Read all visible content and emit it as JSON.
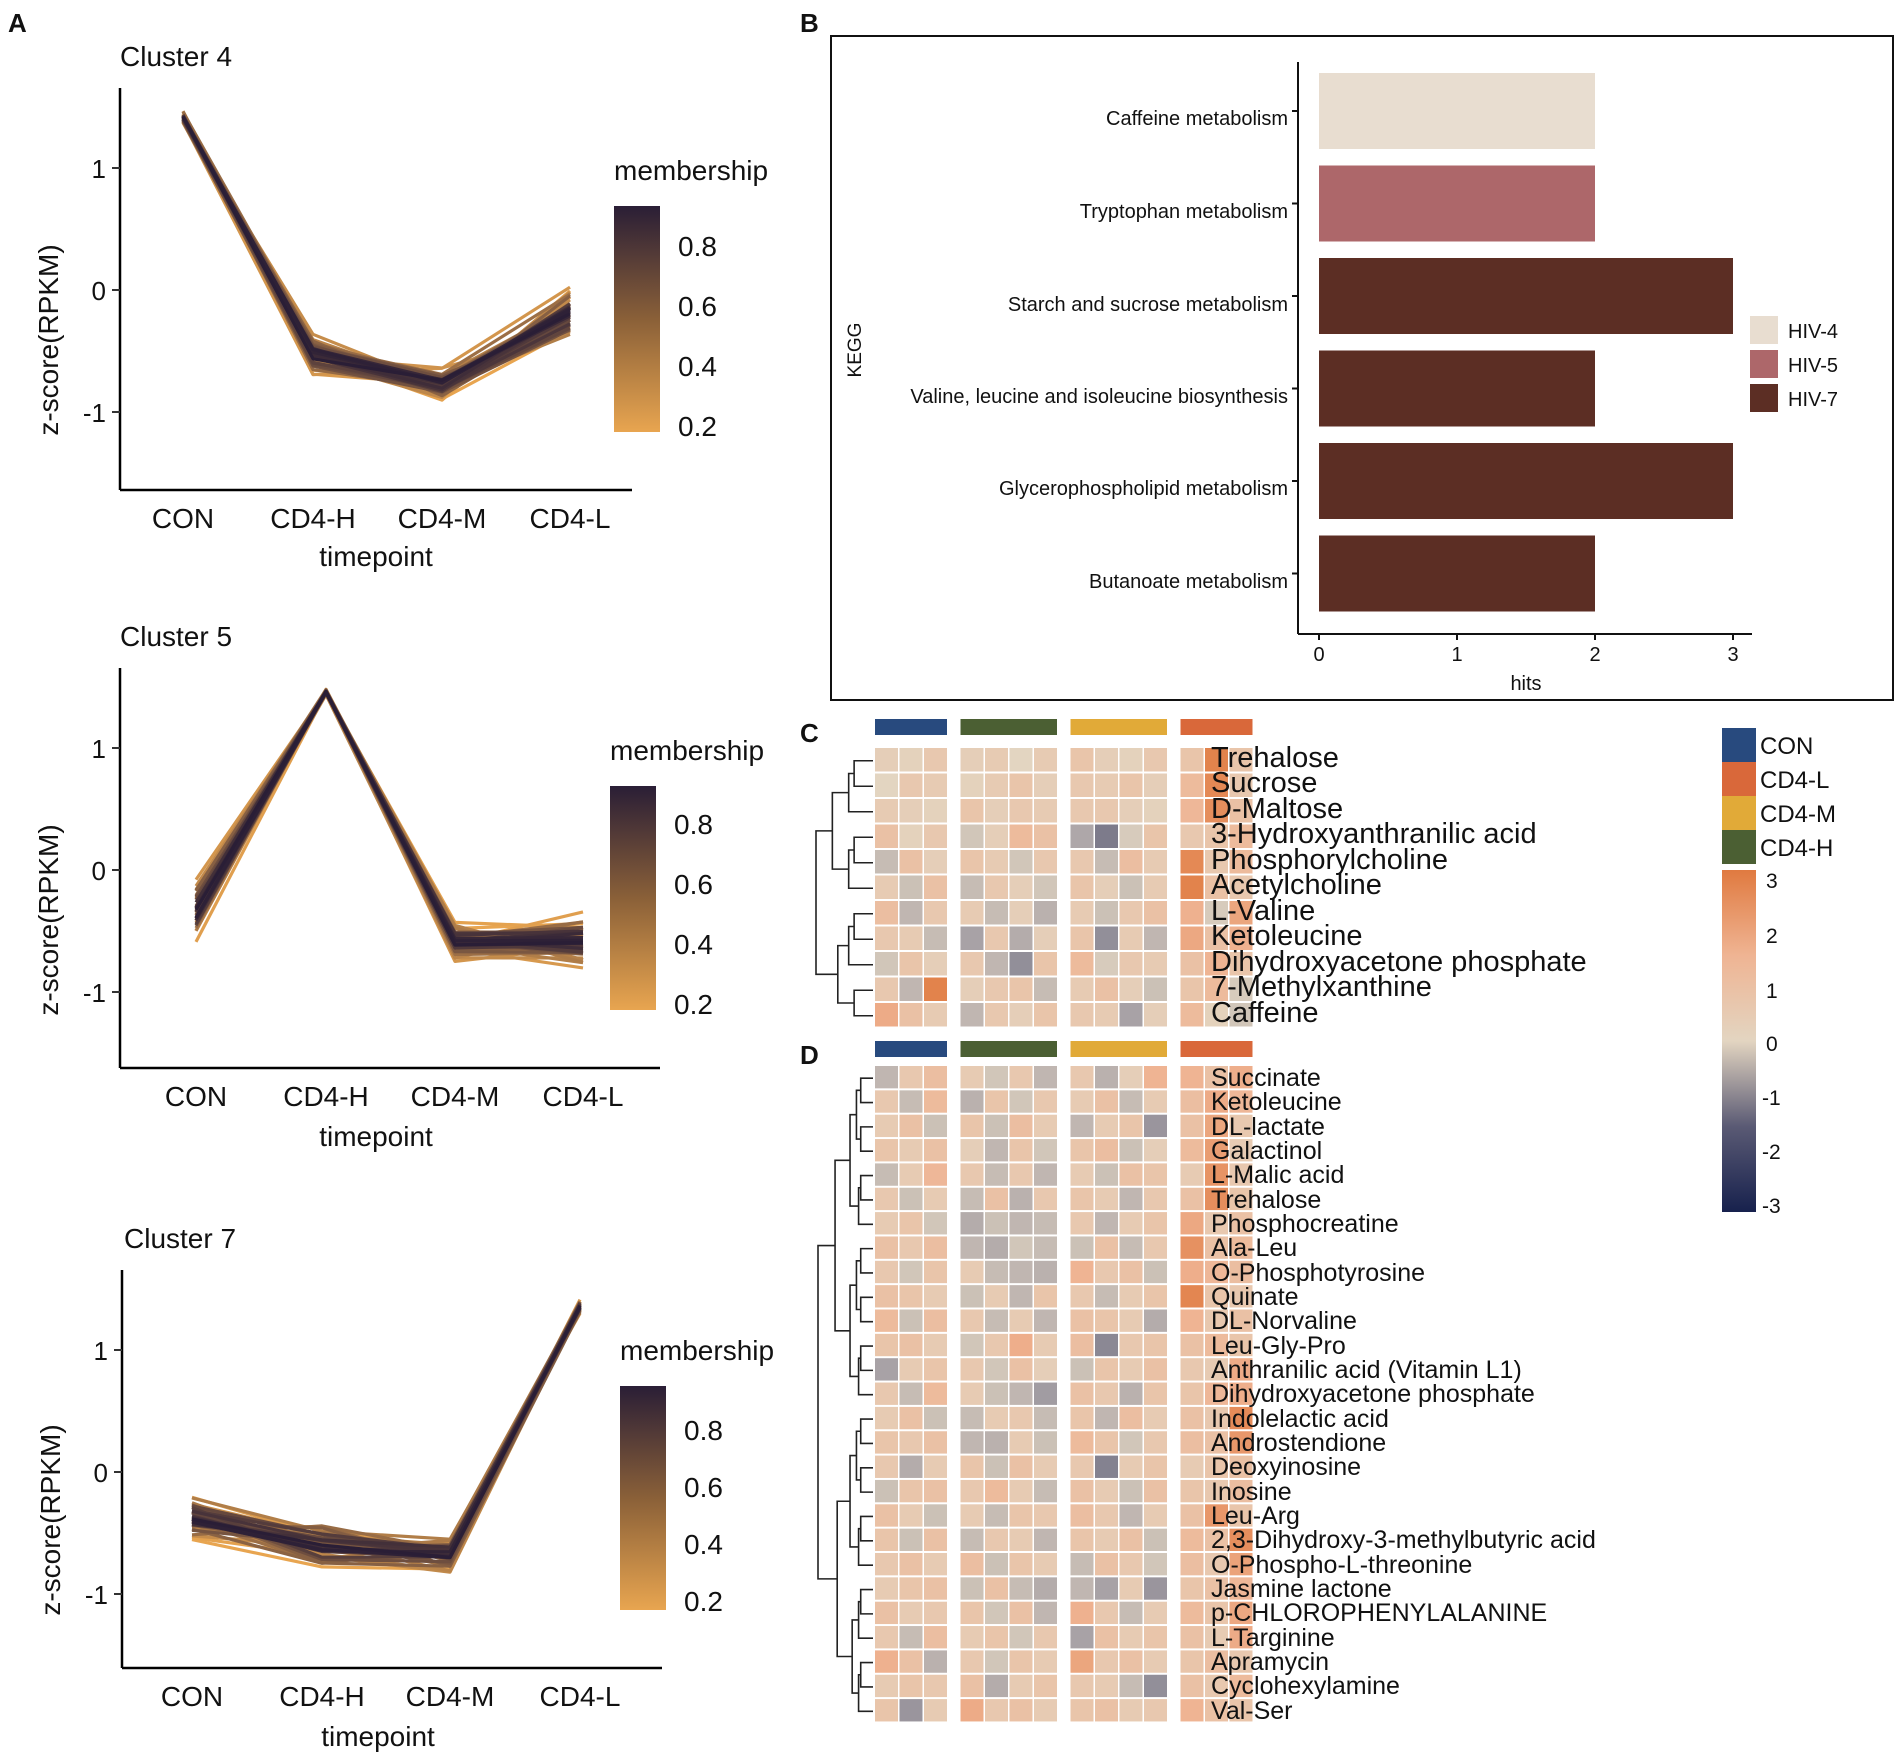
{
  "panel_labels": [
    "A",
    "B",
    "C",
    "D"
  ],
  "chart_data": [
    {
      "panel": "A",
      "type": "line",
      "title": "Cluster 4",
      "xlabel": "timepoint",
      "ylabel": "z-score(RPKM)",
      "categories": [
        "CON",
        "CD4-H",
        "CD4-M",
        "CD4-L"
      ],
      "ylim": [
        -1.6,
        1.6
      ],
      "yticks": [
        "1",
        "0",
        "-1"
      ],
      "centroid": [
        1.42,
        -0.53,
        -0.77,
        -0.2
      ],
      "spread": [
        0.07,
        0.2,
        0.16,
        0.26
      ],
      "line_count": 46,
      "legend": {
        "title": "membership",
        "ticks": [
          "0.8",
          "0.6",
          "0.4",
          "0.2"
        ],
        "range": [
          0.15,
          0.95
        ],
        "colors": [
          "#e8a550",
          "#2a1e36"
        ]
      }
    },
    {
      "panel": "A",
      "type": "line",
      "title": "Cluster 5",
      "xlabel": "timepoint",
      "ylabel": "z-score(RPKM)",
      "categories": [
        "CON",
        "CD4-H",
        "CD4-M",
        "CD4-L"
      ],
      "ylim": [
        -1.6,
        1.6
      ],
      "yticks": [
        "1",
        "0",
        "-1"
      ],
      "centroid": [
        -0.33,
        1.46,
        -0.58,
        -0.58
      ],
      "spread": [
        0.3,
        0.03,
        0.2,
        0.25
      ],
      "line_count": 46,
      "legend": {
        "title": "membership",
        "ticks": [
          "0.8",
          "0.6",
          "0.4",
          "0.2"
        ],
        "range": [
          0.15,
          0.95
        ],
        "colors": [
          "#e8a550",
          "#2a1e36"
        ]
      }
    },
    {
      "panel": "A",
      "type": "line",
      "title": "Cluster 7",
      "xlabel": "timepoint",
      "ylabel": "z-score(RPKM)",
      "categories": [
        "CON",
        "CD4-H",
        "CD4-M",
        "CD4-L"
      ],
      "ylim": [
        -1.6,
        1.6
      ],
      "yticks": [
        "1",
        "0",
        "-1"
      ],
      "centroid": [
        -0.37,
        -0.6,
        -0.67,
        1.36
      ],
      "spread": [
        0.22,
        0.25,
        0.18,
        0.08
      ],
      "line_count": 46,
      "legend": {
        "title": "membership",
        "ticks": [
          "0.8",
          "0.6",
          "0.4",
          "0.2"
        ],
        "range": [
          0.15,
          0.95
        ],
        "colors": [
          "#e8a550",
          "#2a1e36"
        ]
      }
    },
    {
      "panel": "B",
      "type": "bar",
      "orientation": "horizontal",
      "ylabel": "KEGG",
      "xlabel": "hits",
      "xlim": [
        0,
        3
      ],
      "xticks": [
        "0",
        "1",
        "2",
        "3"
      ],
      "categories": [
        "Caffeine metabolism",
        "Tryptophan metabolism",
        "Starch and sucrose metabolism",
        "Valine, leucine and isoleucine biosynthesis",
        "Glycerophospholipid metabolism",
        "Butanoate metabolism"
      ],
      "values": [
        2,
        2,
        3,
        2,
        3,
        2
      ],
      "groups": [
        "HIV-4",
        "HIV-5",
        "HIV-7",
        "HIV-7",
        "HIV-7",
        "HIV-7"
      ],
      "legend": [
        {
          "label": "HIV-4",
          "color": "#e8ddd0"
        },
        {
          "label": "HIV-5",
          "color": "#ad676a"
        },
        {
          "label": "HIV-7",
          "color": "#5c2e24"
        }
      ]
    },
    {
      "panel": "C",
      "type": "heatmap",
      "rows": [
        "Trehalose",
        "Sucrose",
        "D-Maltose",
        "3-Hydroxyanthranilic acid",
        "Phosphorylcholine",
        "Acetylcholine",
        "L-Valine",
        "Ketoleucine",
        "Dihydroxyacetone phosphate",
        "7-Methylxanthine",
        "Caffeine"
      ],
      "groups": [
        "CON",
        "CD4-H",
        "CD4-M",
        "CD4-L"
      ],
      "samples_per_group": [
        3,
        4,
        4,
        3
      ],
      "values": [
        [
          0.2,
          0.1,
          0.4,
          0.2,
          0.3,
          0.0,
          0.3,
          0.5,
          0.2,
          0.1,
          0.4,
          0.5,
          2.7,
          0.5
        ],
        [
          0.0,
          0.4,
          0.3,
          0.1,
          0.3,
          0.5,
          0.2,
          0.4,
          0.3,
          0.5,
          0.2,
          0.8,
          2.5,
          0.4
        ],
        [
          0.3,
          0.2,
          0.1,
          0.5,
          0.2,
          0.4,
          0.3,
          0.4,
          0.4,
          0.2,
          0.1,
          0.9,
          2.3,
          0.6
        ],
        [
          0.6,
          0.1,
          0.4,
          -0.3,
          0.2,
          0.8,
          0.6,
          -0.9,
          -1.6,
          -0.2,
          0.5,
          0.4,
          0.5,
          0.8
        ],
        [
          -0.5,
          0.6,
          0.2,
          0.5,
          0.3,
          -0.3,
          0.4,
          0.4,
          -0.5,
          0.7,
          0.3,
          2.5,
          0.4,
          0.8
        ],
        [
          0.3,
          -0.4,
          0.6,
          -0.5,
          0.4,
          0.2,
          -0.3,
          0.5,
          0.2,
          -0.4,
          0.3,
          2.7,
          0.6,
          0.4
        ],
        [
          0.7,
          -0.6,
          0.4,
          0.3,
          -0.5,
          0.2,
          -0.7,
          0.3,
          -0.4,
          0.4,
          0.6,
          1.1,
          -0.2,
          1.5
        ],
        [
          0.4,
          0.3,
          -0.5,
          -1.0,
          0.4,
          -0.8,
          0.2,
          0.5,
          -1.3,
          0.3,
          -0.6,
          1.4,
          0.6,
          1.1
        ],
        [
          -0.3,
          0.5,
          0.2,
          0.4,
          -0.6,
          -1.3,
          0.5,
          0.8,
          -0.2,
          0.4,
          0.3,
          0.6,
          1.0,
          0.5
        ],
        [
          0.4,
          -0.6,
          2.7,
          0.2,
          0.4,
          0.5,
          -0.5,
          0.3,
          0.6,
          0.2,
          -0.4,
          0.5,
          0.8,
          -0.2
        ],
        [
          1.3,
          0.6,
          0.3,
          -0.6,
          0.4,
          0.2,
          0.5,
          0.4,
          0.3,
          -1.0,
          0.2,
          0.8,
          0.1,
          -0.3
        ]
      ],
      "legend": {
        "groups": [
          {
            "label": "CON",
            "color": "#284a7e"
          },
          {
            "label": "CD4-L",
            "color": "#d9683a"
          },
          {
            "label": "CD4-M",
            "color": "#e1aa38"
          },
          {
            "label": "CD4-H",
            "color": "#4b5f33"
          }
        ],
        "scale_ticks": [
          "3",
          "2",
          "1",
          "0",
          "-1",
          "-2",
          "-3"
        ],
        "scale_range": [
          -3,
          3
        ]
      }
    },
    {
      "panel": "D",
      "type": "heatmap",
      "rows": [
        "Succinate",
        "Ketoleucine",
        "DL-lactate",
        "Galactinol",
        "L-Malic acid",
        "Trehalose",
        "Phosphocreatine",
        "Ala-Leu",
        "O-Phosphotyrosine",
        "Quinate",
        "DL-Norvaline",
        "Leu-Gly-Pro",
        "Anthranilic acid (Vitamin L1)",
        "Dihydroxyacetone phosphate",
        "Indolelactic acid",
        "Androstendione",
        "Deoxyinosine",
        "Inosine",
        "Leu-Arg",
        "2,3-Dihydroxy-3-methylbutyric acid",
        "O-Phospho-L-threonine",
        "Jasmine lactone",
        "p-CHLOROPHENYLALANINE",
        "L-Targinine",
        "Apramycin",
        "Cyclohexylamine",
        "Val-Ser"
      ],
      "groups": [
        "CON",
        "CD4-H",
        "CD4-M",
        "CD4-L"
      ],
      "samples_per_group": [
        3,
        4,
        4,
        3
      ],
      "values": [
        [
          -0.6,
          0.4,
          0.7,
          0.3,
          -0.3,
          0.4,
          -0.6,
          0.4,
          -0.7,
          0.2,
          1.0,
          1.0,
          0.6,
          1.2
        ],
        [
          0.4,
          -0.5,
          0.8,
          -0.7,
          0.5,
          -0.3,
          0.4,
          0.3,
          0.6,
          -0.5,
          0.3,
          0.7,
          1.3,
          0.9
        ],
        [
          0.3,
          0.6,
          -0.4,
          0.5,
          -0.4,
          0.7,
          0.3,
          -0.6,
          0.3,
          0.5,
          -1.2,
          0.6,
          1.5,
          0.4
        ],
        [
          0.5,
          0.3,
          0.6,
          0.2,
          -0.6,
          0.5,
          -0.3,
          0.5,
          0.7,
          -0.4,
          0.2,
          0.8,
          1.8,
          0.3
        ],
        [
          -0.5,
          0.3,
          0.9,
          0.4,
          -0.5,
          0.4,
          -0.6,
          0.3,
          -0.4,
          0.6,
          0.5,
          0.3,
          2.1,
          0.4
        ],
        [
          0.4,
          -0.4,
          0.3,
          -0.5,
          0.6,
          -0.7,
          0.4,
          0.5,
          0.3,
          -0.6,
          0.4,
          0.6,
          2.3,
          0.5
        ],
        [
          0.3,
          0.5,
          -0.3,
          -0.8,
          -0.4,
          -0.6,
          -0.5,
          0.4,
          -0.6,
          0.3,
          0.5,
          1.4,
          0.4,
          0.6
        ],
        [
          0.6,
          0.4,
          0.7,
          -0.6,
          -0.8,
          -0.3,
          -0.5,
          -0.4,
          0.6,
          -0.5,
          0.4,
          2.2,
          0.6,
          0.8
        ],
        [
          0.4,
          -0.3,
          0.5,
          0.3,
          -0.5,
          -0.6,
          -0.7,
          1.0,
          0.4,
          0.6,
          -0.4,
          1.2,
          0.9,
          0.7
        ],
        [
          0.6,
          0.5,
          0.3,
          -0.4,
          0.3,
          -0.6,
          0.5,
          0.4,
          -0.5,
          0.3,
          0.5,
          2.6,
          0.5,
          0.4
        ],
        [
          0.8,
          -0.4,
          0.7,
          0.4,
          -0.5,
          0.3,
          -0.6,
          0.6,
          0.5,
          0.3,
          -0.8,
          1.0,
          0.4,
          0.6
        ],
        [
          0.5,
          0.6,
          0.3,
          -0.3,
          0.4,
          1.2,
          0.3,
          0.7,
          -1.4,
          0.4,
          0.5,
          0.6,
          0.8,
          0.5
        ],
        [
          -1.0,
          0.3,
          0.5,
          0.4,
          -0.3,
          0.6,
          0.2,
          -0.4,
          0.5,
          0.3,
          0.6,
          0.4,
          0.3,
          1.3
        ],
        [
          0.4,
          -0.5,
          0.8,
          0.3,
          -0.4,
          -0.6,
          -1.1,
          0.6,
          0.4,
          -0.7,
          0.5,
          0.5,
          0.9,
          1.2
        ],
        [
          0.3,
          0.6,
          -0.4,
          -0.5,
          0.3,
          0.4,
          -0.5,
          0.5,
          -0.6,
          0.7,
          0.3,
          0.6,
          0.4,
          2.4
        ],
        [
          0.5,
          0.4,
          0.6,
          -0.6,
          -0.7,
          0.3,
          -0.4,
          0.8,
          0.5,
          -0.3,
          0.4,
          0.7,
          0.6,
          2.0
        ],
        [
          0.4,
          -0.8,
          0.3,
          0.5,
          -0.4,
          0.6,
          0.3,
          0.4,
          -1.5,
          0.3,
          0.5,
          0.3,
          0.5,
          0.6
        ],
        [
          -0.4,
          0.5,
          0.6,
          0.4,
          0.8,
          0.3,
          -0.5,
          0.6,
          0.3,
          -0.4,
          0.6,
          0.5,
          0.4,
          0.7
        ],
        [
          0.6,
          0.3,
          -0.4,
          0.3,
          -0.5,
          0.5,
          0.4,
          0.7,
          0.4,
          -0.6,
          0.3,
          0.6,
          2.0,
          0.5
        ],
        [
          0.5,
          -0.4,
          0.6,
          -0.5,
          0.4,
          0.3,
          -0.6,
          0.5,
          0.3,
          0.6,
          -0.4,
          0.8,
          0.6,
          2.3
        ],
        [
          0.4,
          0.6,
          0.3,
          0.7,
          -0.4,
          0.5,
          0.3,
          -0.5,
          0.6,
          0.4,
          -0.3,
          0.7,
          0.4,
          1.6
        ],
        [
          0.3,
          0.5,
          0.6,
          -0.4,
          0.6,
          -0.5,
          -0.8,
          -0.6,
          -1.0,
          0.3,
          -1.2,
          0.5,
          0.6,
          0.9
        ],
        [
          0.6,
          0.3,
          0.4,
          0.5,
          -0.3,
          0.6,
          -0.6,
          1.1,
          0.4,
          -0.5,
          0.3,
          0.8,
          0.5,
          1.4
        ],
        [
          0.4,
          -0.5,
          0.7,
          0.3,
          0.5,
          -0.3,
          0.4,
          -1.0,
          0.6,
          0.3,
          0.5,
          0.6,
          0.3,
          1.3
        ],
        [
          1.1,
          0.6,
          -0.7,
          0.4,
          -0.3,
          0.5,
          0.3,
          1.5,
          0.4,
          0.6,
          0.3,
          0.5,
          0.7,
          0.4
        ],
        [
          0.3,
          0.5,
          0.4,
          0.6,
          -0.8,
          0.3,
          0.5,
          0.4,
          0.3,
          -0.5,
          -1.3,
          0.6,
          0.4,
          0.8
        ],
        [
          0.5,
          -1.2,
          0.3,
          1.3,
          0.4,
          0.6,
          0.3,
          0.5,
          0.6,
          0.3,
          0.4,
          1.0,
          0.6,
          0.5
        ]
      ],
      "legend": {
        "groups": [
          {
            "label": "CON",
            "color": "#284a7e"
          },
          {
            "label": "CD4-L",
            "color": "#d9683a"
          },
          {
            "label": "CD4-M",
            "color": "#e1aa38"
          },
          {
            "label": "CD4-H",
            "color": "#4b5f33"
          }
        ]
      }
    }
  ]
}
